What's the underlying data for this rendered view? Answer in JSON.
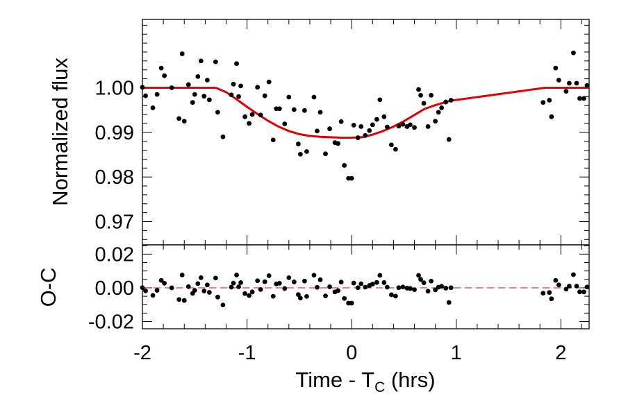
{
  "chart_data": [
    {
      "type": "scatter",
      "panel": "top",
      "title": "",
      "ylabel": "Normalized flux",
      "xlim": [
        -2,
        2.27
      ],
      "ylim": [
        0.9648,
        1.0153
      ],
      "yticks": [
        0.97,
        0.98,
        0.99,
        1.0
      ],
      "ytick_labels": [
        "0.97",
        "0.98",
        "0.99",
        "1.00"
      ],
      "grid": false,
      "series": [
        {
          "kind": "points",
          "color": "#000000",
          "points": [
            [
              -2.0,
              1.0001
            ],
            [
              -1.97,
              0.9982
            ],
            [
              -1.9,
              0.9955
            ],
            [
              -1.86,
              0.9985
            ],
            [
              -1.82,
              1.0044
            ],
            [
              -1.79,
              1.0027
            ],
            [
              -1.72,
              1.0
            ],
            [
              -1.65,
              0.9931
            ],
            [
              -1.62,
              1.0076
            ],
            [
              -1.6,
              0.9925
            ],
            [
              -1.56,
              1.0007
            ],
            [
              -1.52,
              0.9967
            ],
            [
              -1.5,
              0.9985
            ],
            [
              -1.47,
              1.0025
            ],
            [
              -1.44,
              1.006
            ],
            [
              -1.41,
              0.9981
            ],
            [
              -1.38,
              1.0017
            ],
            [
              -1.36,
              0.9973
            ],
            [
              -1.3,
              1.0058
            ],
            [
              -1.28,
              0.9945
            ],
            [
              -1.23,
              0.989
            ],
            [
              -1.15,
              0.9984
            ],
            [
              -1.13,
              1.0008
            ],
            [
              -1.1,
              1.0054
            ],
            [
              -1.08,
              0.998
            ],
            [
              -1.06,
              1.0004
            ],
            [
              -1.02,
              0.9935
            ],
            [
              -0.98,
              0.992
            ],
            [
              -0.95,
              0.994
            ],
            [
              -0.9,
              1.0001
            ],
            [
              -0.87,
              0.9939
            ],
            [
              -0.83,
              0.9982
            ],
            [
              -0.79,
              1.0013
            ],
            [
              -0.75,
              0.9883
            ],
            [
              -0.72,
              0.9953
            ],
            [
              -0.69,
              0.9953
            ],
            [
              -0.64,
              0.9919
            ],
            [
              -0.6,
              0.9979
            ],
            [
              -0.55,
              0.9951
            ],
            [
              -0.51,
              0.9874
            ],
            [
              -0.49,
              0.9851
            ],
            [
              -0.45,
              0.9949
            ],
            [
              -0.43,
              0.9857
            ],
            [
              -0.36,
              0.9979
            ],
            [
              -0.33,
              0.9903
            ],
            [
              -0.3,
              0.9945
            ],
            [
              -0.25,
              0.9852
            ],
            [
              -0.21,
              0.9908
            ],
            [
              -0.16,
              0.9877
            ],
            [
              -0.13,
              0.9875
            ],
            [
              -0.1,
              0.9924
            ],
            [
              -0.07,
              0.9826
            ],
            [
              -0.03,
              0.9797
            ],
            [
              0.0,
              0.9797
            ],
            [
              0.02,
              0.9916
            ],
            [
              0.06,
              0.9888
            ],
            [
              0.09,
              0.9913
            ],
            [
              0.13,
              0.9893
            ],
            [
              0.17,
              0.9904
            ],
            [
              0.2,
              0.9917
            ],
            [
              0.24,
              0.9929
            ],
            [
              0.27,
              0.9973
            ],
            [
              0.31,
              0.9935
            ],
            [
              0.34,
              0.9912
            ],
            [
              0.38,
              0.9872
            ],
            [
              0.42,
              0.9862
            ],
            [
              0.45,
              0.9914
            ],
            [
              0.49,
              0.9918
            ],
            [
              0.53,
              0.9913
            ],
            [
              0.56,
              0.9917
            ],
            [
              0.6,
              0.9911
            ],
            [
              0.64,
              0.9996
            ],
            [
              0.66,
              0.9983
            ],
            [
              0.69,
              0.9965
            ],
            [
              0.73,
              0.9913
            ],
            [
              0.76,
              0.9983
            ],
            [
              0.8,
              0.9925
            ],
            [
              0.83,
              0.9945
            ],
            [
              0.86,
              0.9955
            ],
            [
              0.9,
              0.9968
            ],
            [
              0.93,
              0.9884
            ],
            [
              0.95,
              0.9972
            ],
            [
              1.83,
              0.9967
            ],
            [
              1.89,
              0.9972
            ],
            [
              1.91,
              0.9935
            ],
            [
              1.95,
              1.0044
            ],
            [
              1.98,
              1.0017
            ],
            [
              2.05,
              0.9992
            ],
            [
              2.08,
              1.001
            ],
            [
              2.12,
              1.0078
            ],
            [
              2.15,
              1.001
            ],
            [
              2.18,
              0.9976
            ],
            [
              2.22,
              0.9976
            ],
            [
              2.25,
              1.0005
            ]
          ]
        },
        {
          "kind": "model-line",
          "color": "#e00000",
          "points": [
            [
              -2.0,
              1.0
            ],
            [
              -1.3,
              1.0
            ],
            [
              -1.2,
              0.999
            ],
            [
              -1.1,
              0.9974
            ],
            [
              -1.0,
              0.9957
            ],
            [
              -0.9,
              0.9941
            ],
            [
              -0.8,
              0.9926
            ],
            [
              -0.7,
              0.9913
            ],
            [
              -0.6,
              0.9903
            ],
            [
              -0.5,
              0.9896
            ],
            [
              -0.4,
              0.9892
            ],
            [
              -0.3,
              0.989
            ],
            [
              -0.2,
              0.9889
            ],
            [
              -0.1,
              0.9888
            ],
            [
              0.0,
              0.9888
            ],
            [
              0.1,
              0.9889
            ],
            [
              0.2,
              0.9895
            ],
            [
              0.3,
              0.9903
            ],
            [
              0.4,
              0.9913
            ],
            [
              0.5,
              0.9925
            ],
            [
              0.6,
              0.9939
            ],
            [
              0.7,
              0.9953
            ],
            [
              0.8,
              0.9961
            ],
            [
              0.9,
              0.9968
            ],
            [
              0.95,
              0.9971
            ],
            [
              1.85,
              1.0
            ],
            [
              2.27,
              1.0
            ]
          ]
        }
      ]
    },
    {
      "type": "scatter",
      "panel": "bottom",
      "title": "",
      "xlabel": "Time - T",
      "xlabel_subscript": "C",
      "xlabel_suffix": " (hrs)",
      "ylabel": "O-C",
      "xlim": [
        -2,
        2.27
      ],
      "ylim": [
        -0.0243,
        0.0255
      ],
      "xticks": [
        -2,
        -1,
        0,
        1,
        2
      ],
      "xtick_labels": [
        "-2",
        "-1",
        "0",
        "1",
        "2"
      ],
      "yticks": [
        -0.02,
        0.0,
        0.02
      ],
      "ytick_labels": [
        "-0.02",
        "0.00",
        "0.02"
      ],
      "grid": false,
      "series": [
        {
          "kind": "points",
          "color": "#000000",
          "points": [
            [
              -2.0,
              0.0001
            ],
            [
              -1.97,
              -0.0018
            ],
            [
              -1.9,
              -0.0045
            ],
            [
              -1.86,
              -0.0015
            ],
            [
              -1.82,
              0.0044
            ],
            [
              -1.79,
              0.0027
            ],
            [
              -1.72,
              0.0
            ],
            [
              -1.65,
              -0.0069
            ],
            [
              -1.62,
              0.0076
            ],
            [
              -1.6,
              -0.0075
            ],
            [
              -1.56,
              0.0007
            ],
            [
              -1.52,
              -0.0033
            ],
            [
              -1.5,
              -0.0015
            ],
            [
              -1.47,
              0.0025
            ],
            [
              -1.44,
              0.006
            ],
            [
              -1.41,
              -0.0019
            ],
            [
              -1.38,
              0.0017
            ],
            [
              -1.36,
              -0.0027
            ],
            [
              -1.3,
              0.0058
            ],
            [
              -1.28,
              -0.0055
            ],
            [
              -1.23,
              -0.0102
            ],
            [
              -1.15,
              0.0004
            ],
            [
              -1.13,
              0.0028
            ],
            [
              -1.1,
              0.0076
            ],
            [
              -1.08,
              0.0006
            ],
            [
              -1.06,
              0.0031
            ],
            [
              -1.02,
              -0.0034
            ],
            [
              -0.98,
              -0.0046
            ],
            [
              -0.95,
              -0.0024
            ],
            [
              -0.9,
              0.0042
            ],
            [
              -0.87,
              -0.001
            ],
            [
              -0.83,
              0.0036
            ],
            [
              -0.79,
              0.0072
            ],
            [
              -0.75,
              -0.005
            ],
            [
              -0.72,
              0.0023
            ],
            [
              -0.69,
              0.0027
            ],
            [
              -0.64,
              -0.0004
            ],
            [
              -0.6,
              0.006
            ],
            [
              -0.55,
              0.0035
            ],
            [
              -0.51,
              -0.004
            ],
            [
              -0.49,
              -0.0061
            ],
            [
              -0.45,
              0.004
            ],
            [
              -0.43,
              -0.0051
            ],
            [
              -0.36,
              0.0075
            ],
            [
              -0.33,
              0.0003
            ],
            [
              -0.3,
              0.0048
            ],
            [
              -0.25,
              -0.0048
            ],
            [
              -0.21,
              0.0006
            ],
            [
              -0.16,
              -0.0024
            ],
            [
              -0.13,
              -0.0017
            ],
            [
              -0.1,
              0.0034
            ],
            [
              -0.07,
              -0.0063
            ],
            [
              -0.03,
              -0.0091
            ],
            [
              0.0,
              -0.0091
            ],
            [
              0.02,
              0.0028
            ],
            [
              0.06,
              0.0001
            ],
            [
              0.09,
              0.0024
            ],
            [
              0.13,
              0.0004
            ],
            [
              0.17,
              0.0014
            ],
            [
              0.2,
              0.0022
            ],
            [
              0.24,
              0.0032
            ],
            [
              0.27,
              0.0074
            ],
            [
              0.31,
              0.0031
            ],
            [
              0.34,
              0.0004
            ],
            [
              0.38,
              -0.0041
            ],
            [
              0.42,
              -0.0049
            ],
            [
              0.45,
              0.0001
            ],
            [
              0.49,
              0.0005
            ],
            [
              0.53,
              -0.0002
            ],
            [
              0.56,
              -0.0004
            ],
            [
              0.6,
              -0.0011
            ],
            [
              0.64,
              0.0074
            ],
            [
              0.66,
              0.005
            ],
            [
              0.69,
              0.003
            ],
            [
              0.73,
              -0.002
            ],
            [
              0.76,
              0.004
            ],
            [
              0.8,
              -0.0012
            ],
            [
              0.83,
              0.0004
            ],
            [
              0.86,
              0.0009
            ],
            [
              0.9,
              -0.0002
            ],
            [
              0.93,
              -0.0087
            ],
            [
              0.95,
              0.0001
            ],
            [
              1.83,
              -0.0032
            ],
            [
              1.89,
              -0.0028
            ],
            [
              1.91,
              -0.0065
            ],
            [
              1.95,
              0.0044
            ],
            [
              1.98,
              0.0017
            ],
            [
              2.05,
              -0.0008
            ],
            [
              2.08,
              0.001
            ],
            [
              2.12,
              0.0078
            ],
            [
              2.15,
              0.001
            ],
            [
              2.18,
              -0.0024
            ],
            [
              2.22,
              -0.0024
            ],
            [
              2.25,
              0.0005
            ]
          ]
        },
        {
          "kind": "zero-line",
          "color": "#e00000",
          "style": "dashed",
          "y": 0.0
        }
      ]
    }
  ]
}
